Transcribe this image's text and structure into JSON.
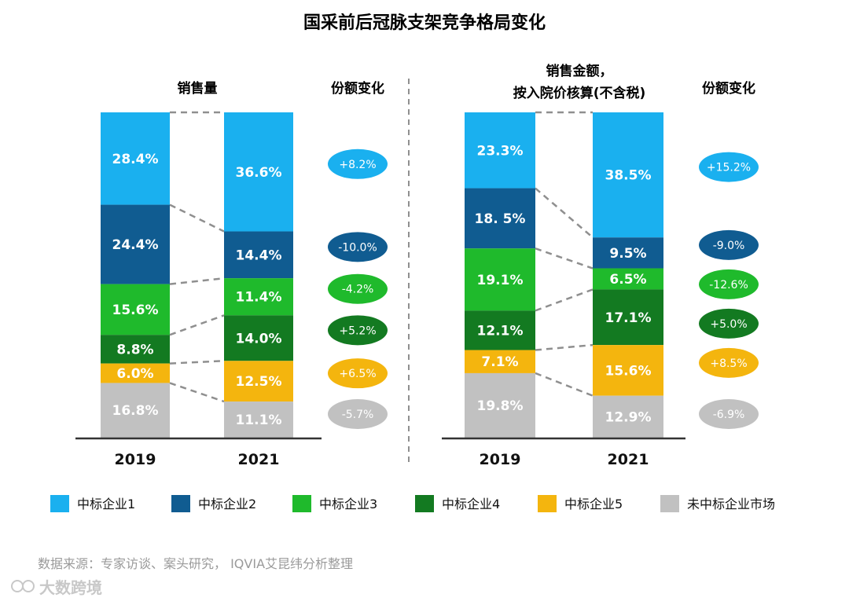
{
  "title": "国采前后冠脉支架竞争格局变化",
  "colors": {
    "s1": "#1ab0ef",
    "s2": "#105c91",
    "s3": "#1fba2c",
    "s4": "#137a21",
    "s5": "#f4b50e",
    "s6": "#c1c1c1",
    "axis": "#333333",
    "connector": "#8f8f8f"
  },
  "chart_data": [
    {
      "type": "stacked-bar",
      "heading": "销售量",
      "change_heading": "份额变化",
      "categories": [
        "2019",
        "2021"
      ],
      "series": [
        {
          "name": "中标企业1",
          "values": [
            28.4,
            36.6
          ],
          "labels": [
            "28.4%",
            "36.6%"
          ],
          "change": "+8.2%"
        },
        {
          "name": "中标企业2",
          "values": [
            24.4,
            14.4
          ],
          "labels": [
            "24.4%",
            "14.4%"
          ],
          "change": "-10.0%"
        },
        {
          "name": "中标企业3",
          "values": [
            15.6,
            11.4
          ],
          "labels": [
            "15.6%",
            "11.4%"
          ],
          "change": "-4.2%"
        },
        {
          "name": "中标企业4",
          "values": [
            8.8,
            14.0
          ],
          "labels": [
            "8.8%",
            "14.0%"
          ],
          "change": "+5.2%"
        },
        {
          "name": "中标企业5",
          "values": [
            6.0,
            12.5
          ],
          "labels": [
            "6.0%",
            "12.5%"
          ],
          "change": "+6.5%"
        },
        {
          "name": "未中标企业市场",
          "values": [
            16.8,
            11.1
          ],
          "labels": [
            "16.8%",
            "11.1%"
          ],
          "change": "-5.7%"
        }
      ]
    },
    {
      "type": "stacked-bar",
      "heading": "销售金额，\n按入院价核算(不含税)",
      "change_heading": "份额变化",
      "categories": [
        "2019",
        "2021"
      ],
      "series": [
        {
          "name": "中标企业1",
          "values": [
            23.3,
            38.5
          ],
          "labels": [
            "23.3%",
            "38.5%"
          ],
          "change": "+15.2%"
        },
        {
          "name": "中标企业2",
          "values": [
            18.5,
            9.5
          ],
          "labels": [
            "18. 5%",
            "9.5%"
          ],
          "change": "-9.0%"
        },
        {
          "name": "中标企业3",
          "values": [
            19.1,
            6.5
          ],
          "labels": [
            "19.1%",
            "6.5%"
          ],
          "change": "-12.6%"
        },
        {
          "name": "中标企业4",
          "values": [
            12.1,
            17.1
          ],
          "labels": [
            "12.1%",
            "17.1%"
          ],
          "change": "+5.0%"
        },
        {
          "name": "中标企业5",
          "values": [
            7.1,
            15.6
          ],
          "labels": [
            "7.1%",
            "15.6%"
          ],
          "change": "+8.5%"
        },
        {
          "name": "未中标企业市场",
          "values": [
            19.8,
            12.9
          ],
          "labels": [
            "19.8%",
            "12.9%"
          ],
          "change": "-6.9%"
        }
      ]
    }
  ],
  "legend": [
    "中标企业1",
    "中标企业2",
    "中标企业3",
    "中标企业4",
    "中标企业5",
    "未中标企业市场"
  ],
  "source": "数据来源：专家访谈、案头研究， IQVIA艾昆纬分析整理",
  "watermark": "大数跨境"
}
